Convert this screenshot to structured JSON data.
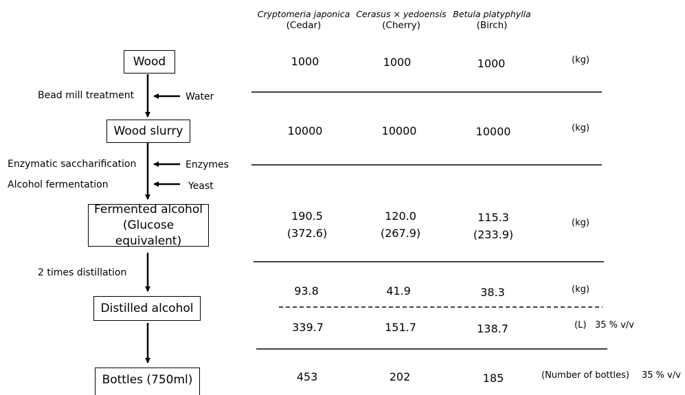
{
  "species": [
    {
      "scientific": "Cryptomeria japonica",
      "common": "(Cedar)"
    },
    {
      "scientific": "Cerasus × yedoensis",
      "common": "(Cherry)"
    },
    {
      "scientific": "Betula platyphylla",
      "common": "(Birch)"
    }
  ],
  "flow": {
    "boxes": {
      "wood": "Wood",
      "slurry": "Wood slurry",
      "fermented_1": "Fermented alcohol",
      "fermented_2": "(Glucose equivalent)",
      "distilled": "Distilled alcohol",
      "bottles": "Bottles (750ml)"
    },
    "steps": {
      "bead_mill": "Bead mill treatment",
      "saccharification": "Enzymatic saccharification",
      "fermentation": "Alcohol fermentation",
      "distillation": "2 times distillation"
    },
    "inputs": {
      "water": "Water",
      "enzymes": "Enzymes",
      "yeast": "Yeast"
    }
  },
  "table": {
    "wood": {
      "values": [
        "1000",
        "1000",
        "1000"
      ],
      "unit": "(kg)"
    },
    "slurry": {
      "values": [
        "10000",
        "10000",
        "10000"
      ],
      "unit": "(kg)"
    },
    "fermented": {
      "values": [
        "190.5",
        "120.0",
        "115.3"
      ],
      "glucose_equivalent": [
        "(372.6)",
        "(267.9)",
        "(233.9)"
      ],
      "unit": "(kg)"
    },
    "distilled_kg": {
      "values": [
        "93.8",
        "41.9",
        "38.3"
      ],
      "unit": "(kg)"
    },
    "distilled_l": {
      "values": [
        "339.7",
        "151.7",
        "138.7"
      ],
      "unit": "(L)",
      "note": "35 % v/v"
    },
    "bottles": {
      "values": [
        "453",
        "202",
        "185"
      ],
      "unit": "(Number of bottles)",
      "note": "35 % v/v"
    }
  }
}
